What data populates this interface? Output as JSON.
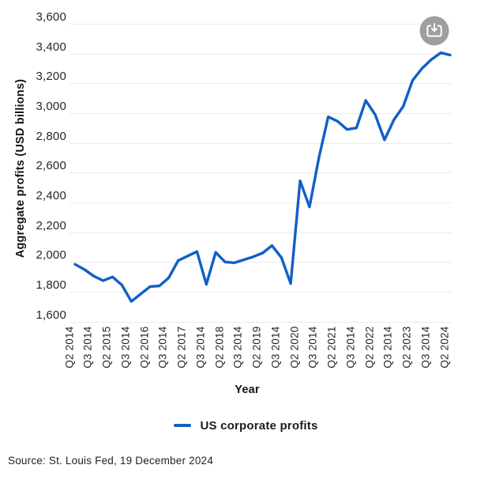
{
  "chart_data": {
    "type": "line",
    "title": "",
    "xlabel": "Year",
    "ylabel": "Aggregate profits (USD billions)",
    "ylim": [
      1600,
      3600
    ],
    "y_tick_labels": [
      "3,600",
      "3,400",
      "3,200",
      "3,000",
      "2,800",
      "2,600",
      "2,400",
      "2,200",
      "2,000",
      "1,800",
      "1,600"
    ],
    "x_tick_labels": [
      "Q2 2014",
      "Q3 2014",
      "Q2 2015",
      "Q3 2014",
      "Q2 2016",
      "Q3 2014",
      "Q2 2017",
      "Q3 2014",
      "Q2 2018",
      "Q3 2014",
      "Q2 2019",
      "Q3 2014",
      "Q2 2020",
      "Q3 2014",
      "Q2 2021",
      "Q3 2014",
      "Q2 2022",
      "Q3 2014",
      "Q2 2023",
      "Q3 2014",
      "Q2 2024"
    ],
    "x_start": "Q2 2014",
    "x_end": "Q2 2024",
    "frequency": "quarterly",
    "grid": "horizontal-only",
    "legend_position": "bottom-center",
    "series": [
      {
        "name": "US corporate profits",
        "values": [
          1985,
          1950,
          1905,
          1875,
          1900,
          1845,
          1735,
          1785,
          1835,
          1840,
          1895,
          2010,
          2040,
          2070,
          1850,
          2065,
          2000,
          1995,
          2015,
          2035,
          2060,
          2110,
          2030,
          1855,
          2545,
          2370,
          2700,
          2975,
          2945,
          2890,
          2900,
          3085,
          2990,
          2820,
          2955,
          3045,
          3220,
          3300,
          3360,
          3405,
          3390
        ]
      }
    ]
  },
  "legend": {
    "series_label": "US corporate profits"
  },
  "source": {
    "text": "Source: St. Louis Fed, 19 December 2024"
  },
  "toolbar": {
    "download_icon": "download-icon"
  },
  "colors": {
    "line": "#1160c5",
    "gridline": "#ebebeb",
    "tick_text": "#262626",
    "icon_circle": "#9e9e9e",
    "icon_glyph": "#ffffff"
  }
}
